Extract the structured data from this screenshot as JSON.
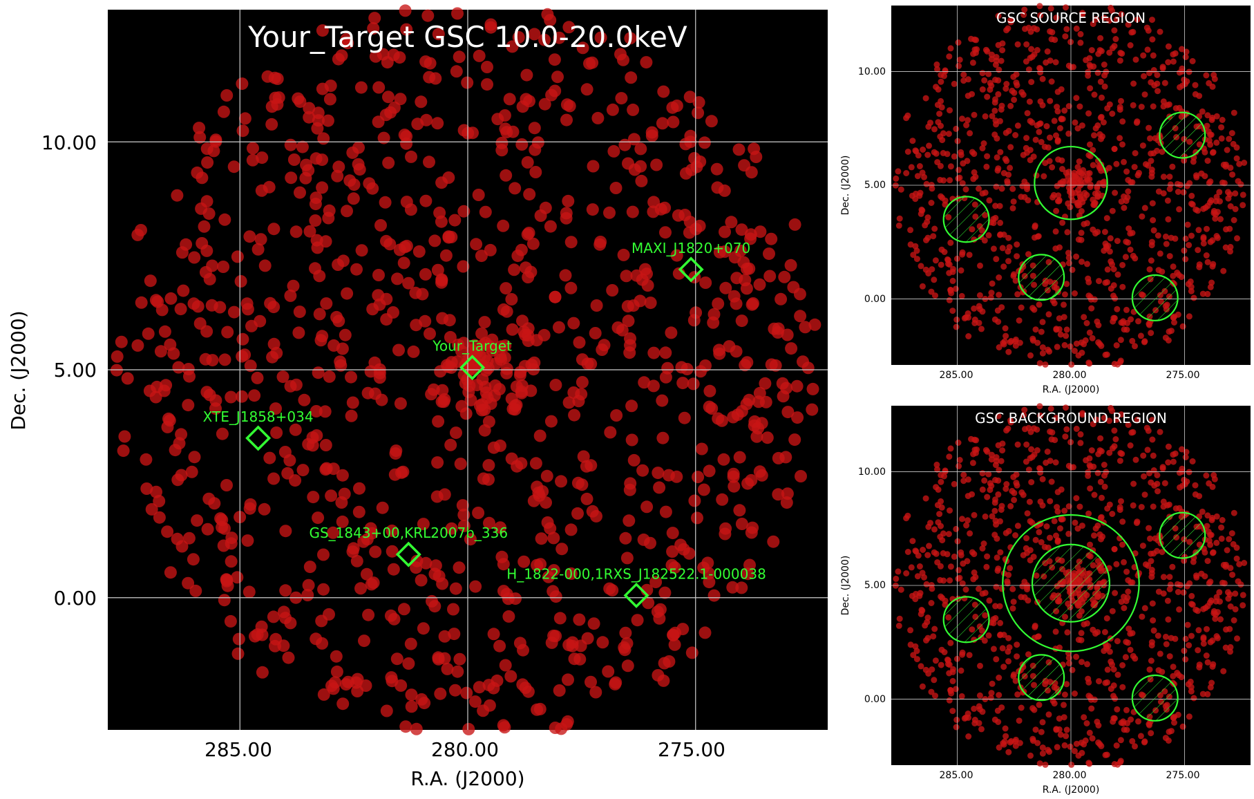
{
  "main": {
    "title": "Your_Target GSC 10.0-20.0keV",
    "xlabel": "R.A. (J2000)",
    "ylabel": "Dec. (J2000)",
    "x_ticks": [
      "285.00",
      "280.00",
      "275.00"
    ],
    "y_ticks": [
      "10.00",
      "5.00",
      "0.00"
    ]
  },
  "source_panel": {
    "title": "GSC SOURCE REGION",
    "xlabel": "R.A. (J2000)",
    "ylabel": "Dec. (J2000)",
    "x_ticks": [
      "285.00",
      "280.00",
      "275.00"
    ],
    "y_ticks": [
      "10.00",
      "5.00",
      "0.00"
    ]
  },
  "background_panel": {
    "title": "GSC BACKGROUND REGION",
    "xlabel": "R.A. (J2000)",
    "ylabel": "Dec. (J2000)",
    "x_ticks": [
      "285.00",
      "280.00",
      "275.00"
    ],
    "y_ticks": [
      "10.00",
      "5.00",
      "0.00"
    ]
  },
  "chart_data": [
    {
      "type": "scatter",
      "title": "Your_Target GSC 10.0-20.0keV",
      "xlabel": "R.A. (J2000)",
      "ylabel": "Dec. (J2000)",
      "xlim": [
        287.9,
        272.1
      ],
      "ylim": [
        -2.9,
        12.9
      ],
      "x_axis_reversed": true,
      "grid": true,
      "background_color": "#000000",
      "event_color": "#c81414",
      "marker_color": "#33ff33",
      "sources": [
        {
          "name": "Your_Target",
          "ra": 279.9,
          "dec": 5.05
        },
        {
          "name": "MAXI_J1820+070",
          "ra": 275.1,
          "dec": 7.2
        },
        {
          "name": "XTE_J1858+034",
          "ra": 284.6,
          "dec": 3.5
        },
        {
          "name": "GS_1843+00,KRL2007b_336",
          "ra": 281.3,
          "dec": 0.95
        },
        {
          "name": "H_1822-000,1RXS_J182522.1-000038",
          "ra": 276.3,
          "dec": 0.05
        }
      ]
    },
    {
      "type": "scatter",
      "title": "GSC SOURCE REGION",
      "xlabel": "R.A. (J2000)",
      "ylabel": "Dec. (J2000)",
      "xlim": [
        287.9,
        272.1
      ],
      "ylim": [
        -2.9,
        12.9
      ],
      "grid": true,
      "source_circle": {
        "ra": 280.0,
        "dec": 5.1,
        "radius_deg": 1.6
      },
      "excluded_circles": [
        {
          "ra": 284.6,
          "dec": 3.5,
          "radius_deg": 1.0
        },
        {
          "ra": 281.3,
          "dec": 0.95,
          "radius_deg": 1.0
        },
        {
          "ra": 275.1,
          "dec": 7.2,
          "radius_deg": 1.0
        },
        {
          "ra": 276.3,
          "dec": 0.05,
          "radius_deg": 1.0
        }
      ]
    },
    {
      "type": "scatter",
      "title": "GSC BACKGROUND REGION",
      "xlabel": "R.A. (J2000)",
      "ylabel": "Dec. (J2000)",
      "xlim": [
        287.9,
        272.1
      ],
      "ylim": [
        -2.9,
        12.9
      ],
      "grid": true,
      "background_annulus": {
        "ra": 280.0,
        "dec": 5.1,
        "inner_radius_deg": 1.7,
        "outer_radius_deg": 3.0
      },
      "excluded_circles": [
        {
          "ra": 280.0,
          "dec": 5.1,
          "radius_deg": 1.7
        },
        {
          "ra": 284.6,
          "dec": 3.5,
          "radius_deg": 1.0
        },
        {
          "ra": 281.3,
          "dec": 0.95,
          "radius_deg": 1.0
        },
        {
          "ra": 275.1,
          "dec": 7.2,
          "radius_deg": 1.0
        },
        {
          "ra": 276.3,
          "dec": 0.05,
          "radius_deg": 1.0
        }
      ]
    }
  ]
}
